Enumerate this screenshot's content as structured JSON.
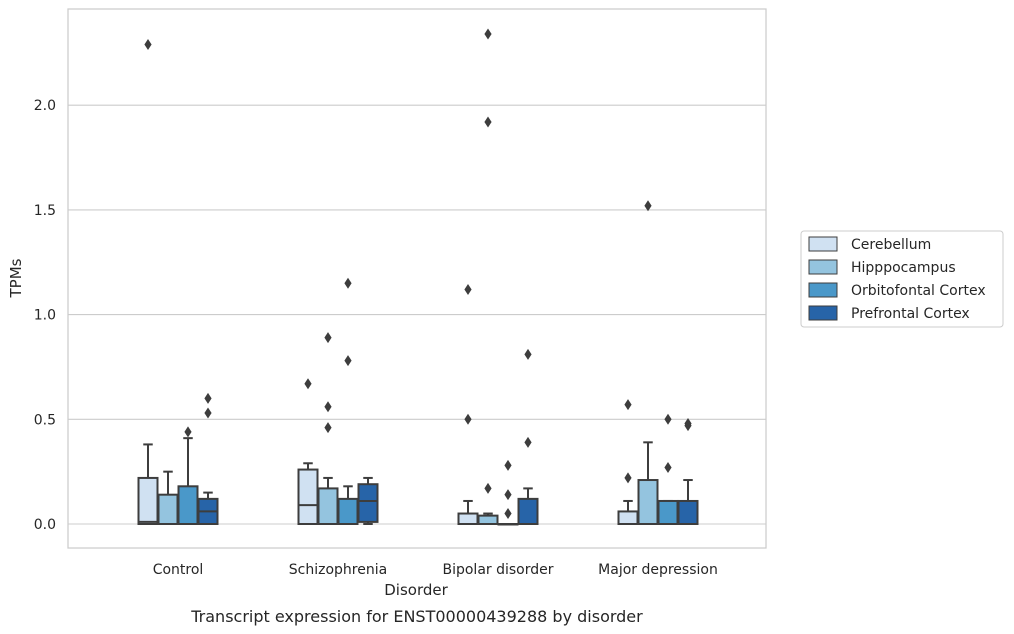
{
  "chart_data": {
    "type": "box",
    "caption": "Transcript expression for ENST00000439288 by disorder",
    "xlabel": "Disorder",
    "ylabel": "TPMs",
    "ylim": [
      -0.115,
      2.45
    ],
    "yticks": [
      0.0,
      0.5,
      1.0,
      1.5,
      2.0
    ],
    "ytick_labels": [
      "0.0",
      "0.5",
      "1.0",
      "1.5",
      "2.0"
    ],
    "grid": "horizontal",
    "legend_position": "center-right, outside plot",
    "categories": [
      "Control",
      "Schizophrenia",
      "Bipolar disorder",
      "Major depression"
    ],
    "series": [
      {
        "name": "Cerebellum",
        "color": "#d0e1f2",
        "boxes": [
          {
            "whisker_low": 0.0,
            "q1": 0.0,
            "median": 0.01,
            "q3": 0.22,
            "whisker_high": 0.38,
            "outliers": [
              2.29
            ]
          },
          {
            "whisker_low": 0.0,
            "q1": 0.0,
            "median": 0.09,
            "q3": 0.26,
            "whisker_high": 0.29,
            "outliers": [
              0.67
            ]
          },
          {
            "whisker_low": 0.0,
            "q1": 0.0,
            "median": 0.0,
            "q3": 0.05,
            "whisker_high": 0.11,
            "outliers": [
              0.5,
              1.12
            ]
          },
          {
            "whisker_low": 0.0,
            "q1": 0.0,
            "median": 0.0,
            "q3": 0.06,
            "whisker_high": 0.11,
            "outliers": [
              0.22,
              0.57
            ]
          }
        ]
      },
      {
        "name": "Hipppocampus",
        "color": "#94c4df",
        "boxes": [
          {
            "whisker_low": 0.0,
            "q1": 0.0,
            "median": 0.0,
            "q3": 0.14,
            "whisker_high": 0.25,
            "outliers": []
          },
          {
            "whisker_low": 0.0,
            "q1": 0.0,
            "median": 0.0,
            "q3": 0.17,
            "whisker_high": 0.22,
            "outliers": [
              0.89,
              0.56,
              0.46
            ]
          },
          {
            "whisker_low": 0.0,
            "q1": 0.0,
            "median": 0.0,
            "q3": 0.04,
            "whisker_high": 0.05,
            "outliers": [
              2.34,
              1.92,
              0.17
            ]
          },
          {
            "whisker_low": 0.0,
            "q1": 0.0,
            "median": 0.0,
            "q3": 0.21,
            "whisker_high": 0.39,
            "outliers": [
              1.52
            ]
          }
        ]
      },
      {
        "name": "Orbitofontal Cortex",
        "color": "#4a98c9",
        "boxes": [
          {
            "whisker_low": 0.0,
            "q1": 0.0,
            "median": 0.0,
            "q3": 0.18,
            "whisker_high": 0.41,
            "outliers": [
              0.44
            ]
          },
          {
            "whisker_low": 0.0,
            "q1": 0.0,
            "median": 0.0,
            "q3": 0.12,
            "whisker_high": 0.18,
            "outliers": [
              1.15,
              0.78
            ]
          },
          {
            "whisker_low": 0.0,
            "q1": 0.0,
            "median": 0.0,
            "q3": 0.0,
            "whisker_high": 0.0,
            "outliers": [
              0.28,
              0.14,
              0.05
            ]
          },
          {
            "whisker_low": 0.0,
            "q1": 0.0,
            "median": 0.0,
            "q3": 0.11,
            "whisker_high": 0.11,
            "outliers": [
              0.5,
              0.27
            ]
          }
        ]
      },
      {
        "name": "Prefrontal Cortex",
        "color": "#2764a8",
        "boxes": [
          {
            "whisker_low": 0.0,
            "q1": 0.0,
            "median": 0.06,
            "q3": 0.12,
            "whisker_high": 0.15,
            "outliers": [
              0.6,
              0.53
            ]
          },
          {
            "whisker_low": 0.0,
            "q1": 0.01,
            "median": 0.11,
            "q3": 0.19,
            "whisker_high": 0.22,
            "outliers": []
          },
          {
            "whisker_low": 0.0,
            "q1": 0.0,
            "median": 0.0,
            "q3": 0.12,
            "whisker_high": 0.17,
            "outliers": [
              0.81,
              0.39
            ]
          },
          {
            "whisker_low": 0.0,
            "q1": 0.0,
            "median": 0.0,
            "q3": 0.11,
            "whisker_high": 0.21,
            "outliers": [
              0.48,
              0.47
            ]
          }
        ]
      }
    ]
  }
}
